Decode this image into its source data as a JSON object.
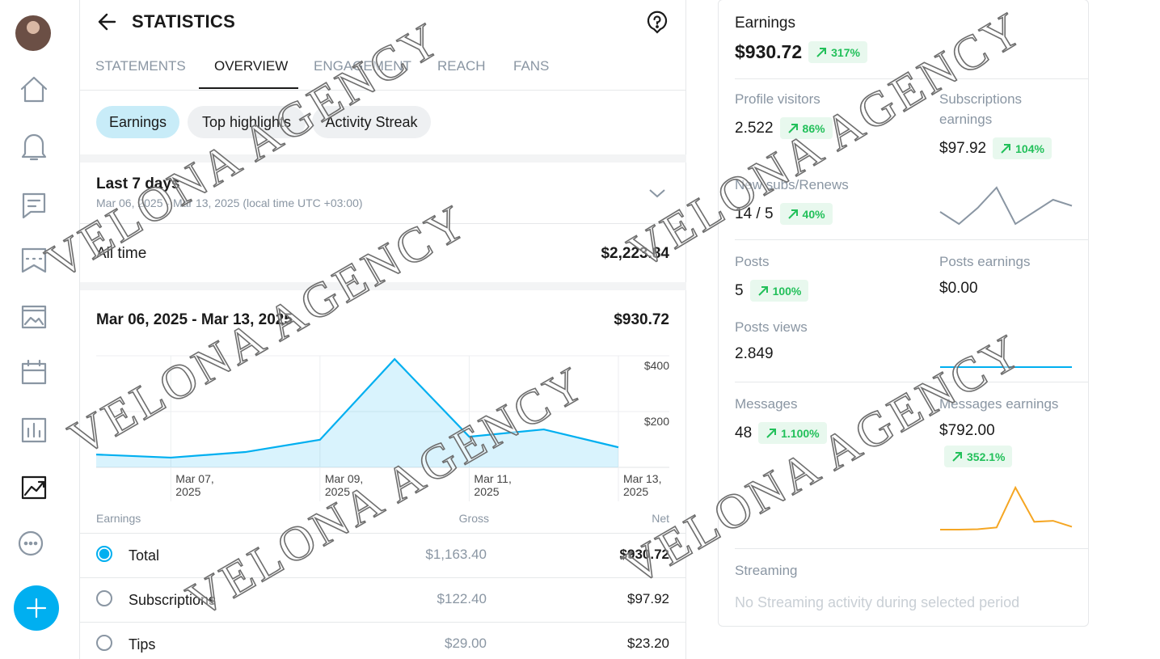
{
  "header": {
    "title": "STATISTICS"
  },
  "tabs": [
    "STATEMENTS",
    "OVERVIEW",
    "ENGAGEMENT",
    "REACH",
    "FANS"
  ],
  "chips": [
    "Earnings",
    "Top highlights",
    "Activity Streak"
  ],
  "period": {
    "label": "Last 7 days",
    "dates": "Mar 06, 2025 - Mar 13, 2025 (local time UTC +03:00)"
  },
  "all_time": {
    "label": "All time",
    "value": "$2,223.84"
  },
  "range": {
    "label": "Mar 06, 2025 - Mar 13, 2025",
    "total": "$930.72"
  },
  "chart_data": {
    "type": "area",
    "categories": [
      null,
      "Mar 07, 2025",
      null,
      "Mar 09, 2025",
      null,
      "Mar 11, 2025",
      null,
      "Mar 13, 2025"
    ],
    "values": [
      46,
      35,
      55,
      99,
      388,
      110,
      136,
      72
    ],
    "color": "#00aff0",
    "ylim": [
      0,
      400
    ],
    "yticks": [
      {
        "value": 200,
        "label": "$200"
      },
      {
        "value": 400,
        "label": "$400"
      }
    ],
    "grid": true
  },
  "table": {
    "columns": [
      "Earnings",
      "Gross",
      "Net"
    ],
    "rows": [
      [
        "Total",
        "$1,163.40",
        "$930.72"
      ],
      [
        "Subscriptions",
        "$122.40",
        "$97.92"
      ],
      [
        "Tips",
        "$29.00",
        "$23.20"
      ]
    ]
  },
  "summary": {
    "earnings": {
      "label": "Earnings",
      "value": "$930.72",
      "change": "317%"
    },
    "profile_visitors": {
      "label": "Profile visitors",
      "value": "2.522",
      "change": "86%"
    },
    "subscriptions_earnings": {
      "label": "Subscriptions earnings",
      "value": "$97.92",
      "change": "104%"
    },
    "new_subs": {
      "label": "New subs/Renews",
      "value": "14 / 5",
      "change": "40%"
    },
    "posts": {
      "label": "Posts",
      "value": "5",
      "change": "100%"
    },
    "posts_earnings": {
      "label": "Posts earnings",
      "value": "$0.00"
    },
    "posts_views": {
      "label": "Posts views",
      "value": "2.849"
    },
    "messages": {
      "label": "Messages",
      "value": "48",
      "change": "1.100%"
    },
    "messages_earnings": {
      "label": "Messages earnings",
      "value": "$792.00",
      "change": "352.1%"
    },
    "streaming": {
      "label": "Streaming",
      "note": "No Streaming activity during selected period"
    }
  },
  "sparklines": {
    "subscriptions": {
      "color": "#8a96a3",
      "values": [
        12,
        6,
        14,
        24,
        6,
        12,
        18,
        15
      ]
    },
    "posts": {
      "color": "#00aff0",
      "values": [
        0,
        0,
        0,
        0,
        0,
        0,
        0,
        0
      ]
    },
    "messages": {
      "color": "#f5a623",
      "values": [
        5,
        5,
        8,
        20,
        300,
        60,
        67,
        25
      ]
    }
  },
  "watermark": "VELONA AGENCY"
}
